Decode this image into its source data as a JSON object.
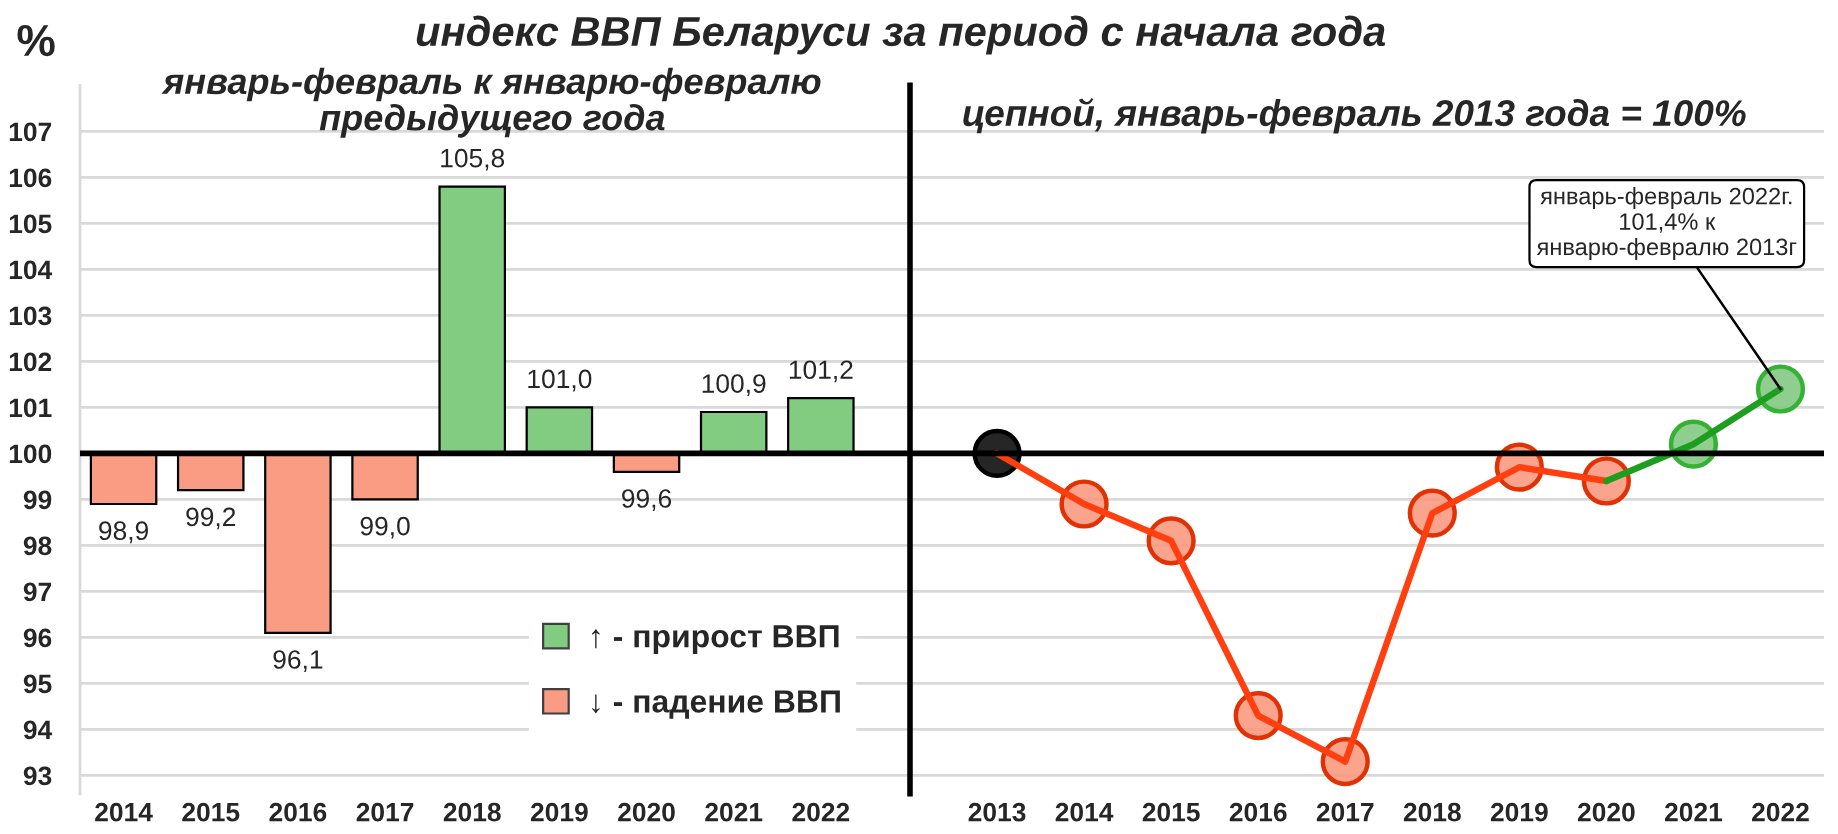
{
  "chart_data": [
    {
      "type": "bar",
      "title": "индекс ВВП Беларуси за период с начала года",
      "subtitle": "январь-февраль к январю-февралю\nпредыдущего года",
      "ylabel": "%",
      "categories": [
        "2014",
        "2015",
        "2016",
        "2017",
        "2018",
        "2019",
        "2020",
        "2021",
        "2022"
      ],
      "base": [
        100,
        100,
        100,
        100,
        100,
        100,
        100,
        100,
        100
      ],
      "values": [
        -1.1,
        -0.8,
        -3.9,
        -1.0,
        5.8,
        1.0,
        -0.4,
        0.9,
        1.2
      ],
      "colors": [
        "#fa9c84",
        "#fa9c84",
        "#fa9c84",
        "#fa9c84",
        "#82cc82",
        "#82cc82",
        "#fa9c84",
        "#82cc82",
        "#82cc82"
      ],
      "value_labels": [
        "98,9",
        "99,2",
        "96,1",
        "99,0",
        "105,8",
        "101,0",
        "99,6",
        "100,9",
        "101,2"
      ],
      "series": [
        {
          "name": "↑ - прирост ВВП",
          "color": "#82cc82",
          "values": [
            null,
            null,
            null,
            null,
            null,
            null,
            null,
            null,
            null
          ]
        },
        {
          "name": "↓ - падение ВВП",
          "color": "#fa9c84",
          "values": [
            null,
            null,
            null,
            null,
            null,
            null,
            null,
            null,
            null
          ]
        }
      ],
      "ylim": [
        92.6,
        108
      ],
      "yticks": [
        93,
        94,
        95,
        96,
        97,
        98,
        99,
        100,
        101,
        102,
        103,
        104,
        105,
        106,
        107
      ],
      "grid": "y",
      "legend": "bottom right",
      "ref_lines": [
        {
          "axis": "y",
          "value": 100,
          "color": "#000000"
        }
      ]
    },
    {
      "type": "line",
      "subtitle": "цепной, январь-февраль 2013 года = 100%",
      "categories": [
        "2013",
        "2014",
        "2015",
        "2016",
        "2017",
        "2018",
        "2019",
        "2020",
        "2021",
        "2022"
      ],
      "series": [
        {
          "type": "line",
          "color": "#ff3f0f",
          "values": [
            100,
            98.9,
            98.1,
            94.3,
            93.3,
            98.7,
            99.7,
            99.4,
            null,
            null
          ]
        },
        {
          "type": "line",
          "color": "#1e9e1e",
          "values": [
            null,
            null,
            null,
            null,
            null,
            null,
            null,
            99.4,
            100.2,
            101.4
          ]
        },
        {
          "type": "scatter",
          "marker": "circle",
          "colors": [
            "#000000",
            "#f99379",
            "#f99379",
            "#f99379",
            "#f99379",
            "#f99379",
            "#f99379",
            "#f99379",
            "#7cc67c",
            "#7cc67c"
          ],
          "values": [
            100,
            98.9,
            98.1,
            94.3,
            93.3,
            98.7,
            99.7,
            99.4,
            100.2,
            101.4
          ]
        }
      ],
      "ylim": [
        92.6,
        108
      ],
      "yticks": [
        93,
        94,
        95,
        96,
        97,
        98,
        99,
        100,
        101,
        102,
        103,
        104,
        105,
        106,
        107
      ],
      "tick_labels": "x",
      "grid": "y",
      "ref_lines": [
        {
          "axis": "y",
          "value": 100,
          "color": "#000000"
        }
      ],
      "annotations": [
        {
          "text": "январь-февраль 2022г.\n101,4% к\nянварю-февралю 2013г",
          "x": "2022",
          "y": 101.4
        }
      ]
    }
  ]
}
